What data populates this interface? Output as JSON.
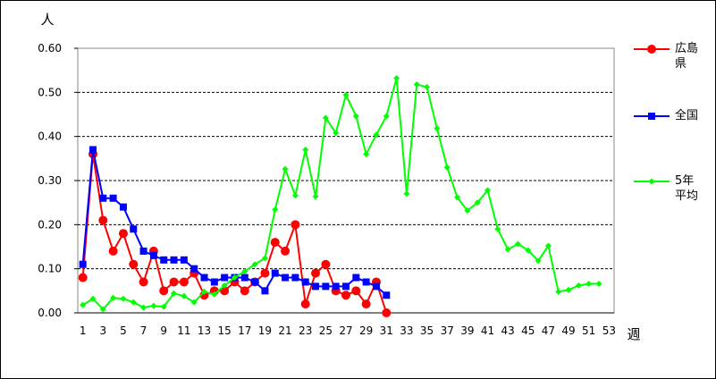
{
  "chart_data": {
    "type": "line",
    "y_label": "人",
    "x_label": "週",
    "categories": [
      1,
      null,
      3,
      null,
      5,
      null,
      7,
      null,
      9,
      null,
      11,
      null,
      13,
      null,
      15,
      null,
      17,
      null,
      19,
      null,
      21,
      null,
      23,
      null,
      25,
      null,
      27,
      null,
      29,
      null,
      31,
      null,
      33,
      null,
      35,
      null,
      37,
      null,
      39,
      null,
      41,
      null,
      43,
      null,
      45,
      null,
      47,
      null,
      49,
      null,
      51,
      null,
      53
    ],
    "ylim": [
      0,
      0.6
    ],
    "yticks": [
      {
        "value": 0,
        "label": "0.00"
      },
      {
        "value": 0.1,
        "label": "0.10"
      },
      {
        "value": 0.2,
        "label": "0.20"
      },
      {
        "value": 0.3,
        "label": "0.30"
      },
      {
        "value": 0.4,
        "label": "0.40"
      },
      {
        "value": 0.5,
        "label": "0.50"
      },
      {
        "value": 0.6,
        "label": "0.60"
      }
    ],
    "grid": true,
    "series": [
      {
        "name": "広島県",
        "color": "#ff0000",
        "marker": "circle",
        "values": [
          0.08,
          0.36,
          0.21,
          0.14,
          0.18,
          0.11,
          0.07,
          0.14,
          0.05,
          0.07,
          0.07,
          0.09,
          0.04,
          0.05,
          0.05,
          0.07,
          0.05,
          0.07,
          0.09,
          0.16,
          0.14,
          0.2,
          0.02,
          0.09,
          0.11,
          0.05,
          0.04,
          0.05,
          0.02,
          0.07,
          0.0,
          null,
          null,
          null,
          null,
          null,
          null,
          null,
          null,
          null,
          null,
          null,
          null,
          null,
          null,
          null,
          null,
          null,
          null,
          null,
          null,
          null,
          null
        ]
      },
      {
        "name": "全国",
        "color": "#0000ff",
        "marker": "square",
        "values": [
          0.11,
          0.37,
          0.26,
          0.26,
          0.24,
          0.19,
          0.14,
          0.13,
          0.12,
          0.12,
          0.12,
          0.1,
          0.08,
          0.07,
          0.08,
          0.08,
          0.08,
          0.07,
          0.05,
          0.09,
          0.08,
          0.08,
          0.07,
          0.06,
          0.06,
          0.06,
          0.06,
          0.08,
          0.07,
          0.06,
          0.04,
          null,
          null,
          null,
          null,
          null,
          null,
          null,
          null,
          null,
          null,
          null,
          null,
          null,
          null,
          null,
          null,
          null,
          null,
          null,
          null,
          null,
          null
        ]
      },
      {
        "name": "5年平均",
        "color": "#00ff00",
        "marker": "diamond",
        "values": [
          0.018,
          0.032,
          0.008,
          0.034,
          0.032,
          0.024,
          0.012,
          0.016,
          0.014,
          0.044,
          0.038,
          0.024,
          0.048,
          0.042,
          0.062,
          0.08,
          0.094,
          0.11,
          0.124,
          0.234,
          0.326,
          0.266,
          0.37,
          0.264,
          0.442,
          0.408,
          0.494,
          0.446,
          0.36,
          0.404,
          0.446,
          0.532,
          0.27,
          0.518,
          0.512,
          0.418,
          0.33,
          0.262,
          0.232,
          0.25,
          0.278,
          0.19,
          0.144,
          0.156,
          0.142,
          0.118,
          0.152,
          0.048,
          0.052,
          0.062,
          0.066,
          0.066,
          null
        ]
      }
    ]
  }
}
